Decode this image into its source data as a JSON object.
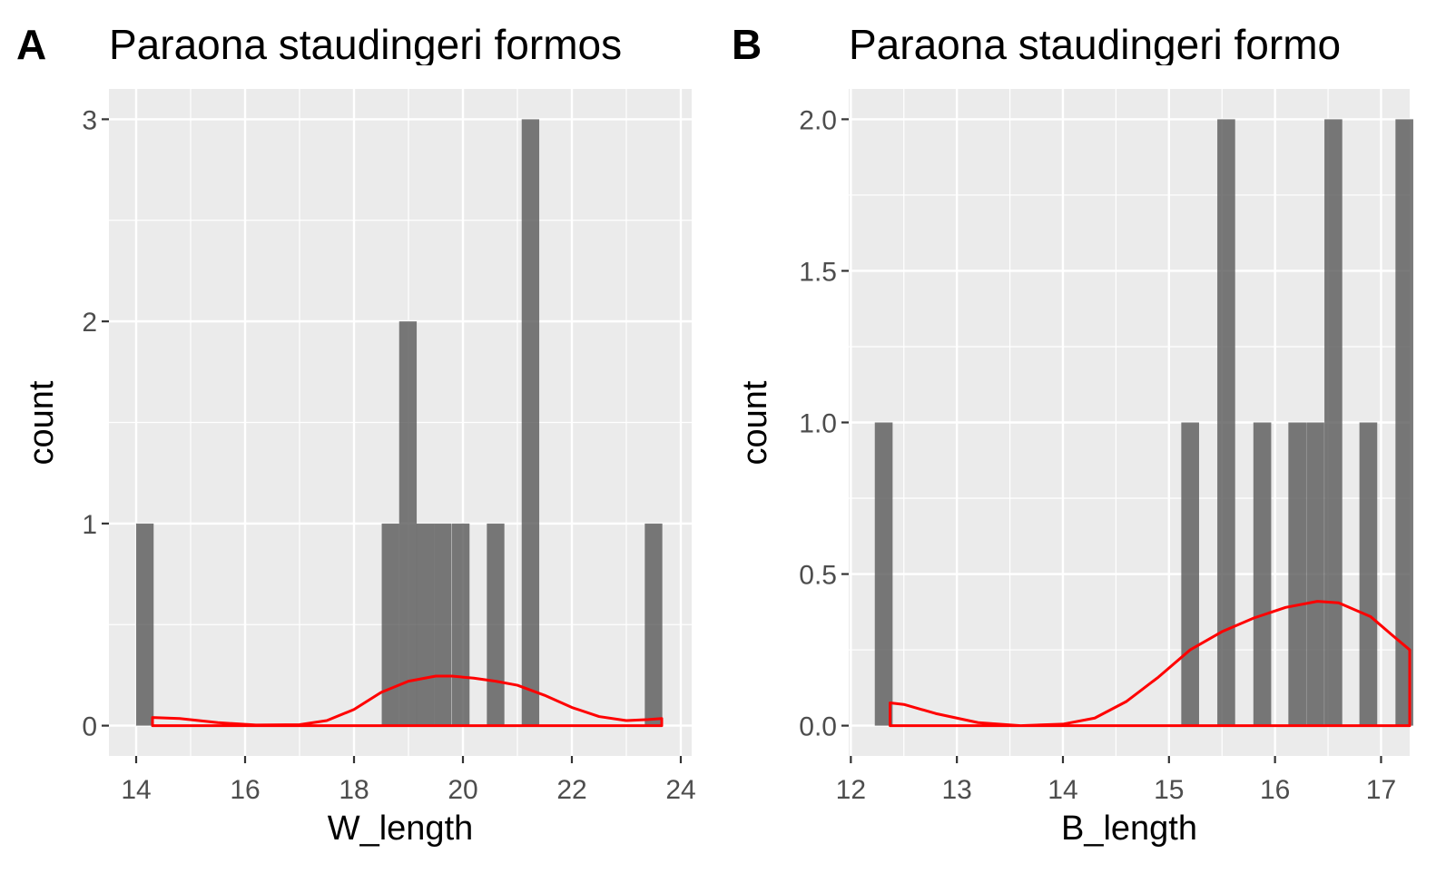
{
  "chart_data": [
    {
      "type": "histogram",
      "panel_label": "A",
      "title": "Paraona staudingeri formos",
      "xlabel": "W_length",
      "ylabel": "count",
      "xlim": [
        13.5,
        24.2
      ],
      "ylim": [
        -0.15,
        3.15
      ],
      "x_ticks": [
        14,
        16,
        18,
        20,
        22,
        24
      ],
      "x_tick_labels": [
        "14",
        "16",
        "18",
        "20",
        "22",
        "24"
      ],
      "y_ticks": [
        0,
        1,
        2,
        3
      ],
      "y_tick_labels": [
        "0",
        "1",
        "2",
        "3"
      ],
      "bin_width": 0.322,
      "bars": [
        {
          "x": 14.16,
          "count": 1
        },
        {
          "x": 18.67,
          "count": 1
        },
        {
          "x": 18.99,
          "count": 2
        },
        {
          "x": 19.31,
          "count": 1
        },
        {
          "x": 19.63,
          "count": 1
        },
        {
          "x": 19.96,
          "count": 1
        },
        {
          "x": 20.6,
          "count": 1
        },
        {
          "x": 21.24,
          "count": 3
        },
        {
          "x": 23.5,
          "count": 1
        }
      ],
      "density_color": "#ff0000",
      "density": {
        "x": [
          14.3,
          14.8,
          15.5,
          16.2,
          17.0,
          17.5,
          18.0,
          18.5,
          19.0,
          19.5,
          19.8,
          20.2,
          20.6,
          21.0,
          21.5,
          22.0,
          22.5,
          23.0,
          23.4,
          23.65
        ],
        "y": [
          0.04,
          0.035,
          0.015,
          0.003,
          0.005,
          0.025,
          0.08,
          0.165,
          0.22,
          0.245,
          0.245,
          0.235,
          0.22,
          0.2,
          0.15,
          0.09,
          0.045,
          0.025,
          0.03,
          0.035
        ]
      }
    },
    {
      "type": "histogram",
      "panel_label": "B",
      "title": "Paraona staudingeri formo",
      "xlabel": "B_length",
      "ylabel": "count",
      "xlim": [
        11.98,
        17.27
      ],
      "ylim": [
        -0.1,
        2.1
      ],
      "x_ticks": [
        12,
        13,
        14,
        15,
        16,
        17
      ],
      "x_tick_labels": [
        "12",
        "13",
        "14",
        "15",
        "16",
        "17"
      ],
      "y_ticks": [
        0.0,
        0.5,
        1.0,
        1.5,
        2.0
      ],
      "y_tick_labels": [
        "0.0",
        "0.5",
        "1.0",
        "1.5",
        "2.0"
      ],
      "bin_width": 0.168,
      "bars": [
        {
          "x": 12.31,
          "count": 1
        },
        {
          "x": 15.2,
          "count": 1
        },
        {
          "x": 15.54,
          "count": 2
        },
        {
          "x": 15.88,
          "count": 1
        },
        {
          "x": 16.21,
          "count": 1
        },
        {
          "x": 16.38,
          "count": 1
        },
        {
          "x": 16.55,
          "count": 2
        },
        {
          "x": 16.88,
          "count": 1
        },
        {
          "x": 17.22,
          "count": 2
        }
      ],
      "density_color": "#ff0000",
      "density": {
        "x": [
          12.37,
          12.5,
          12.8,
          13.2,
          13.6,
          14.0,
          14.3,
          14.6,
          14.9,
          15.2,
          15.5,
          15.8,
          16.1,
          16.4,
          16.6,
          16.9,
          17.1,
          17.27
        ],
        "y": [
          0.075,
          0.07,
          0.04,
          0.01,
          0.0,
          0.005,
          0.025,
          0.08,
          0.16,
          0.25,
          0.31,
          0.355,
          0.39,
          0.41,
          0.405,
          0.36,
          0.3,
          0.25
        ]
      }
    }
  ]
}
